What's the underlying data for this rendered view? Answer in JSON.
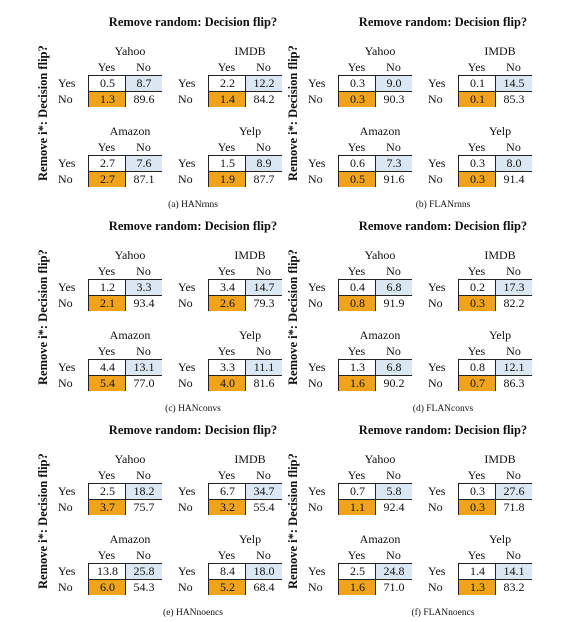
{
  "common": {
    "title": "Remove random: Decision flip?",
    "ylabel": "Remove i*: Decision flip?",
    "yes": "Yes",
    "no": "No"
  },
  "colors": {
    "diag_orange": "#f2a31c",
    "offdiag_blue": "#dbe7f3",
    "white": "#ffffff"
  },
  "panels": [
    {
      "caption": "(a) HANrnns",
      "datasets": [
        {
          "name": "Yahoo",
          "cells": [
            [
              "0.5",
              "8.7"
            ],
            [
              "1.3",
              "89.6"
            ]
          ]
        },
        {
          "name": "IMDB",
          "cells": [
            [
              "2.2",
              "12.2"
            ],
            [
              "1.4",
              "84.2"
            ]
          ]
        },
        {
          "name": "Amazon",
          "cells": [
            [
              "2.7",
              "7.6"
            ],
            [
              "2.7",
              "87.1"
            ]
          ]
        },
        {
          "name": "Yelp",
          "cells": [
            [
              "1.5",
              "8.9"
            ],
            [
              "1.9",
              "87.7"
            ]
          ]
        }
      ]
    },
    {
      "caption": "(b) FLANrnns",
      "datasets": [
        {
          "name": "Yahoo",
          "cells": [
            [
              "0.3",
              "9.0"
            ],
            [
              "0.3",
              "90.3"
            ]
          ]
        },
        {
          "name": "IMDB",
          "cells": [
            [
              "0.1",
              "14.5"
            ],
            [
              "0.1",
              "85.3"
            ]
          ]
        },
        {
          "name": "Amazon",
          "cells": [
            [
              "0.6",
              "7.3"
            ],
            [
              "0.5",
              "91.6"
            ]
          ]
        },
        {
          "name": "Yelp",
          "cells": [
            [
              "0.3",
              "8.0"
            ],
            [
              "0.3",
              "91.4"
            ]
          ]
        }
      ]
    },
    {
      "caption": "(c) HANconvs",
      "datasets": [
        {
          "name": "Yahoo",
          "cells": [
            [
              "1.2",
              "3.3"
            ],
            [
              "2.1",
              "93.4"
            ]
          ]
        },
        {
          "name": "IMDB",
          "cells": [
            [
              "3.4",
              "14.7"
            ],
            [
              "2.6",
              "79.3"
            ]
          ]
        },
        {
          "name": "Amazon",
          "cells": [
            [
              "4.4",
              "13.1"
            ],
            [
              "5.4",
              "77.0"
            ]
          ]
        },
        {
          "name": "Yelp",
          "cells": [
            [
              "3.3",
              "11.1"
            ],
            [
              "4.0",
              "81.6"
            ]
          ]
        }
      ]
    },
    {
      "caption": "(d) FLANconvs",
      "datasets": [
        {
          "name": "Yahoo",
          "cells": [
            [
              "0.4",
              "6.8"
            ],
            [
              "0.8",
              "91.9"
            ]
          ]
        },
        {
          "name": "IMDB",
          "cells": [
            [
              "0.2",
              "17.3"
            ],
            [
              "0.3",
              "82.2"
            ]
          ]
        },
        {
          "name": "Amazon",
          "cells": [
            [
              "1.3",
              "6.8"
            ],
            [
              "1.6",
              "90.2"
            ]
          ]
        },
        {
          "name": "Yelp",
          "cells": [
            [
              "0.8",
              "12.1"
            ],
            [
              "0.7",
              "86.3"
            ]
          ]
        }
      ]
    },
    {
      "caption": "(e) HANnoencs",
      "datasets": [
        {
          "name": "Yahoo",
          "cells": [
            [
              "2.5",
              "18.2"
            ],
            [
              "3.7",
              "75.7"
            ]
          ]
        },
        {
          "name": "IMDB",
          "cells": [
            [
              "6.7",
              "34.7"
            ],
            [
              "3.2",
              "55.4"
            ]
          ]
        },
        {
          "name": "Amazon",
          "cells": [
            [
              "13.8",
              "25.8"
            ],
            [
              "6.0",
              "54.3"
            ]
          ]
        },
        {
          "name": "Yelp",
          "cells": [
            [
              "8.4",
              "18.0"
            ],
            [
              "5.2",
              "68.4"
            ]
          ]
        }
      ]
    },
    {
      "caption": "(f) FLANnoencs",
      "datasets": [
        {
          "name": "Yahoo",
          "cells": [
            [
              "0.7",
              "5.8"
            ],
            [
              "1.1",
              "92.4"
            ]
          ]
        },
        {
          "name": "IMDB",
          "cells": [
            [
              "0.3",
              "27.6"
            ],
            [
              "0.3",
              "71.8"
            ]
          ]
        },
        {
          "name": "Amazon",
          "cells": [
            [
              "2.5",
              "24.8"
            ],
            [
              "1.6",
              "71.0"
            ]
          ]
        },
        {
          "name": "Yelp",
          "cells": [
            [
              "1.4",
              "14.1"
            ],
            [
              "1.3",
              "83.2"
            ]
          ]
        }
      ]
    }
  ]
}
